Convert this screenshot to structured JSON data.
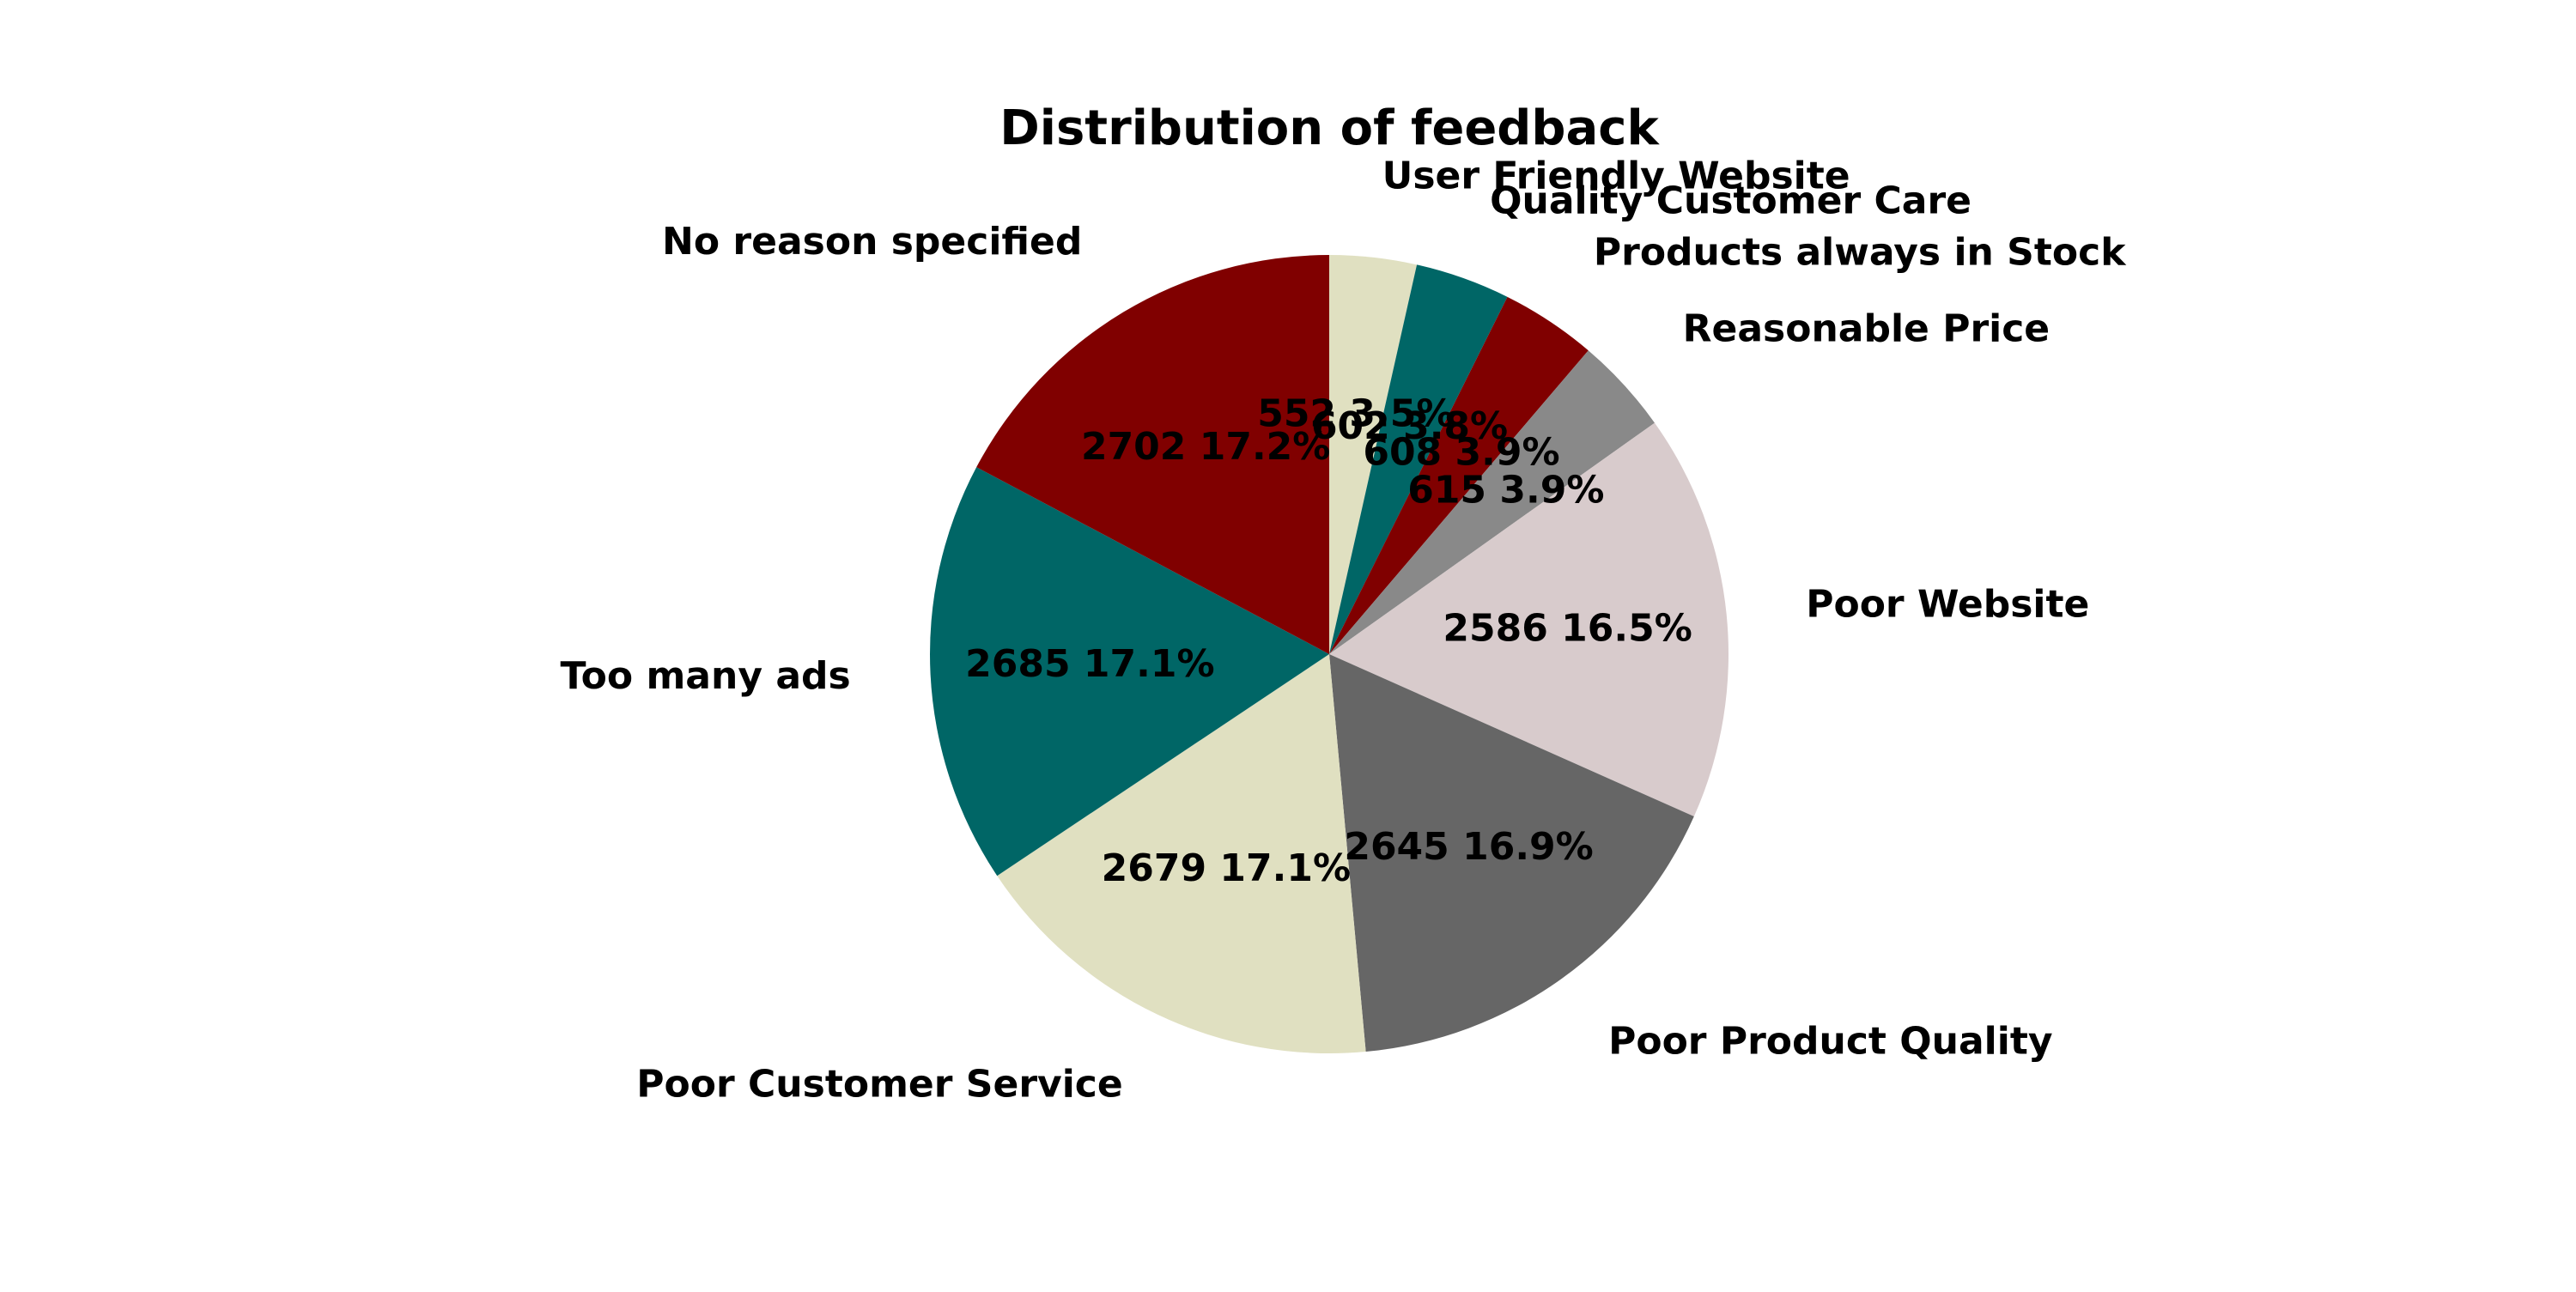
{
  "chart_data": {
    "type": "pie",
    "title": "Distribution of feedback",
    "start_angle_deg": 90,
    "direction": "clockwise",
    "slices": [
      {
        "label": "User Friendly Website",
        "value": 552,
        "percent": "3.5%",
        "color": "#e0e0c1"
      },
      {
        "label": "Quality Customer Care",
        "value": 602,
        "percent": "3.8%",
        "color": "#006666"
      },
      {
        "label": "Products always in Stock",
        "value": 608,
        "percent": "3.9%",
        "color": "#800000"
      },
      {
        "label": "Reasonable Price",
        "value": 615,
        "percent": "3.9%",
        "color": "#898989"
      },
      {
        "label": "Poor Website",
        "value": 2586,
        "percent": "16.5%",
        "color": "#d8cbcc"
      },
      {
        "label": "Poor Product Quality",
        "value": 2645,
        "percent": "16.9%",
        "color": "#666666"
      },
      {
        "label": "Poor Customer Service",
        "value": 2679,
        "percent": "17.1%",
        "color": "#e0e0c1"
      },
      {
        "label": "Too many ads",
        "value": 2685,
        "percent": "17.1%",
        "color": "#006666"
      },
      {
        "label": "No reason specified",
        "value": 2702,
        "percent": "17.2%",
        "color": "#800000"
      }
    ]
  }
}
